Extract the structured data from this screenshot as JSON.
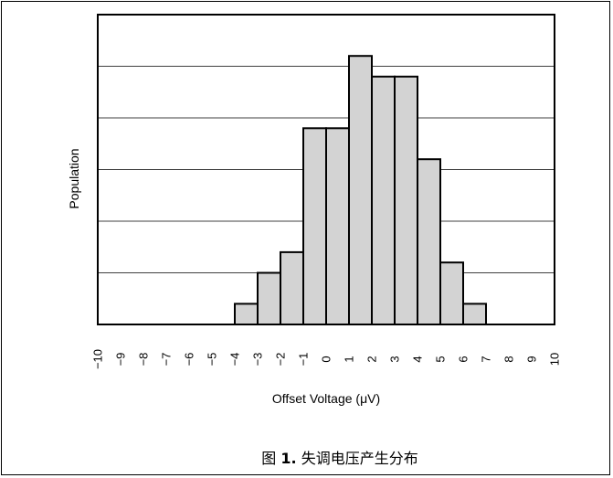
{
  "chart_data": {
    "type": "bar",
    "x": [
      -10,
      -9,
      -8,
      -7,
      -6,
      -5,
      -4,
      -3,
      -2,
      -1,
      0,
      1,
      2,
      3,
      4,
      5,
      6,
      7,
      8,
      9,
      10
    ],
    "bins": [
      {
        "from": -4,
        "to": -3,
        "value": 0.4
      },
      {
        "from": -3,
        "to": -2,
        "value": 1.0
      },
      {
        "from": -2,
        "to": -1,
        "value": 1.4
      },
      {
        "from": -1,
        "to": 0,
        "value": 3.8
      },
      {
        "from": 0,
        "to": 1,
        "value": 3.8
      },
      {
        "from": 1,
        "to": 2,
        "value": 5.2
      },
      {
        "from": 2,
        "to": 3,
        "value": 4.8
      },
      {
        "from": 3,
        "to": 4,
        "value": 4.8
      },
      {
        "from": 4,
        "to": 5,
        "value": 3.2
      },
      {
        "from": 5,
        "to": 6,
        "value": 1.2
      },
      {
        "from": 6,
        "to": 7,
        "value": 0.4
      }
    ],
    "xlim": [
      -10,
      10
    ],
    "ylim": [
      0,
      6
    ],
    "xlabel": "Offset Voltage (μV)",
    "ylabel": "Population",
    "grid": "horizontal",
    "colors": {
      "bar_fill": "#d3d3d3",
      "bar_stroke": "#000000"
    }
  },
  "caption": {
    "prefix": "图 ",
    "number": "1.",
    "text": " 失调电压产生分布"
  }
}
